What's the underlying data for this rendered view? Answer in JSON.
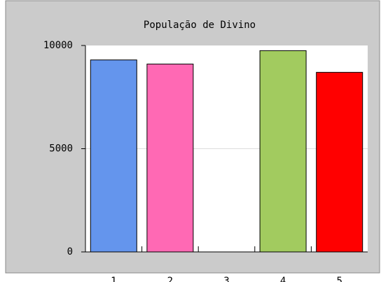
{
  "chart_data": {
    "type": "bar",
    "title": "População de Divino",
    "categories": [
      "1",
      "2",
      "3",
      "4",
      "5"
    ],
    "values": [
      9300,
      9100,
      null,
      9750,
      8700
    ],
    "colors": [
      "#6495ed",
      "#ff69b4",
      "#999999",
      "#a2cb5f",
      "#ff0000"
    ],
    "ylim": [
      0,
      10000
    ],
    "yticks": [
      0,
      5000,
      10000
    ],
    "grid": true
  }
}
